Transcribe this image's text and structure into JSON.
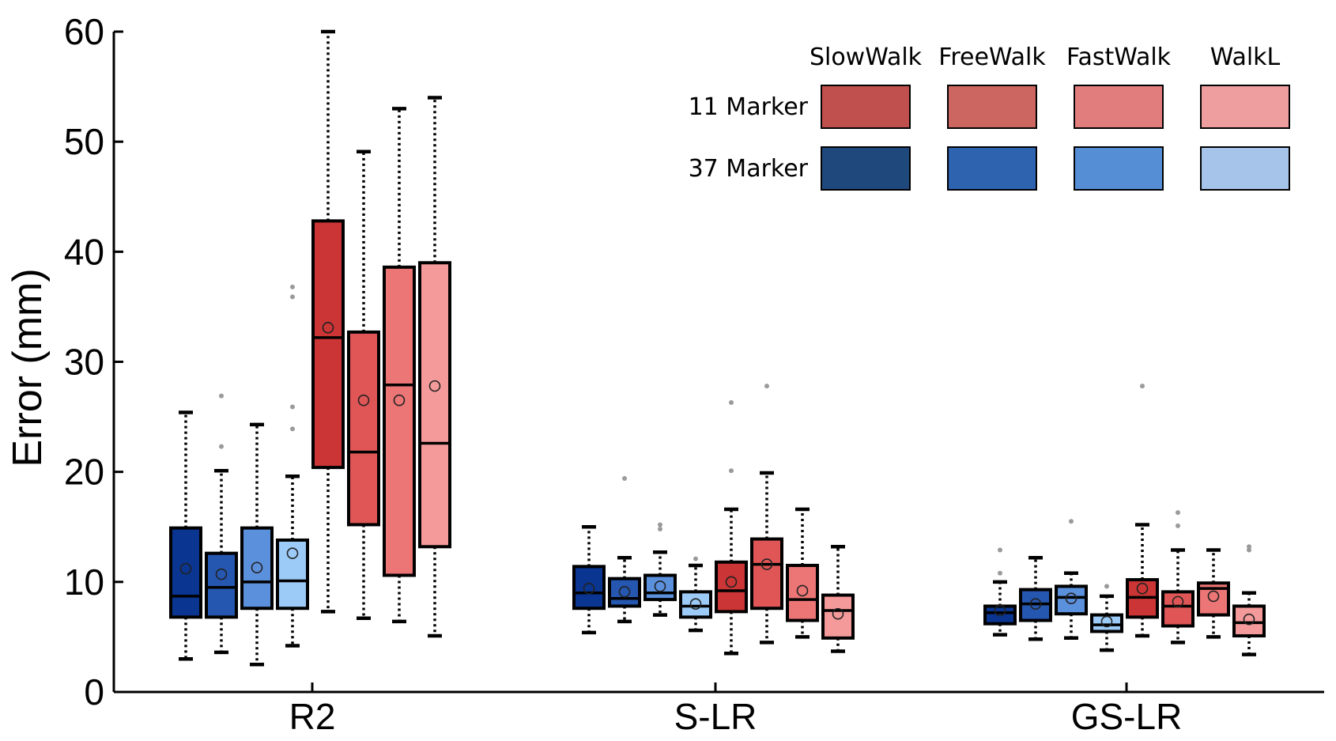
{
  "chart_data": {
    "type": "box",
    "title": "",
    "xlabel": "",
    "ylabel": "Error (mm)",
    "ylim": [
      0,
      60
    ],
    "yticks": [
      0,
      10,
      20,
      30,
      40,
      50,
      60
    ],
    "categories": [
      "R2",
      "S-LR",
      "GS-LR"
    ],
    "legend": {
      "position": "top-right",
      "columns": [
        "SlowWalk",
        "FreeWalk",
        "FastWalk",
        "WalkL"
      ],
      "rows": [
        {
          "label": "11 Marker",
          "colors": [
            "#c0504d",
            "#cc6660",
            "#e27d7d",
            "#ee9e9e"
          ]
        },
        {
          "label": "37 Marker",
          "colors": [
            "#1f497d",
            "#2e63b0",
            "#558ed5",
            "#a6c4ea"
          ]
        }
      ]
    },
    "series": [
      {
        "name": "37 Marker SlowWalk",
        "color": "#0a3590",
        "groups": [
          {
            "category": "R2",
            "min": 3.0,
            "q1": 6.8,
            "median": 8.7,
            "q3": 14.9,
            "max": 25.4,
            "mean": 11.2,
            "outliers": []
          },
          {
            "category": "S-LR",
            "min": 5.4,
            "q1": 7.6,
            "median": 9.0,
            "q3": 11.4,
            "max": 15.0,
            "mean": 9.4,
            "outliers": []
          },
          {
            "category": "GS-LR",
            "min": 5.2,
            "q1": 6.2,
            "median": 7.2,
            "q3": 7.8,
            "max": 10.0,
            "mean": 7.4,
            "outliers": [
              10.8,
              12.9
            ]
          }
        ]
      },
      {
        "name": "37 Marker FreeWalk",
        "color": "#2557b0",
        "groups": [
          {
            "category": "R2",
            "min": 3.6,
            "q1": 6.8,
            "median": 9.5,
            "q3": 12.6,
            "max": 20.1,
            "mean": 10.7,
            "outliers": [
              22.3,
              26.9
            ]
          },
          {
            "category": "S-LR",
            "min": 6.4,
            "q1": 7.8,
            "median": 8.5,
            "q3": 10.3,
            "max": 12.2,
            "mean": 9.1,
            "outliers": [
              19.4
            ]
          },
          {
            "category": "GS-LR",
            "min": 4.8,
            "q1": 6.5,
            "median": 8.0,
            "q3": 9.3,
            "max": 12.2,
            "mean": 8.0,
            "outliers": []
          }
        ]
      },
      {
        "name": "37 Marker FastWalk",
        "color": "#5b90dc",
        "groups": [
          {
            "category": "R2",
            "min": 2.5,
            "q1": 7.6,
            "median": 10.0,
            "q3": 14.9,
            "max": 24.3,
            "mean": 11.3,
            "outliers": []
          },
          {
            "category": "S-LR",
            "min": 7.0,
            "q1": 8.4,
            "median": 9.0,
            "q3": 10.6,
            "max": 12.7,
            "mean": 9.6,
            "outliers": [
              14.8,
              15.2
            ]
          },
          {
            "category": "GS-LR",
            "min": 4.9,
            "q1": 7.1,
            "median": 8.6,
            "q3": 9.6,
            "max": 10.8,
            "mean": 8.5,
            "outliers": [
              15.5
            ]
          }
        ]
      },
      {
        "name": "37 Marker WalkL",
        "color": "#9ccbf7",
        "groups": [
          {
            "category": "R2",
            "min": 4.2,
            "q1": 7.6,
            "median": 10.1,
            "q3": 13.8,
            "max": 19.6,
            "mean": 12.6,
            "outliers": [
              23.9,
              25.9,
              35.9,
              36.8
            ]
          },
          {
            "category": "S-LR",
            "min": 5.6,
            "q1": 6.8,
            "median": 7.8,
            "q3": 9.1,
            "max": 11.5,
            "mean": 8.0,
            "outliers": [
              12.1
            ]
          },
          {
            "category": "GS-LR",
            "min": 3.8,
            "q1": 5.5,
            "median": 6.1,
            "q3": 7.0,
            "max": 8.7,
            "mean": 6.4,
            "outliers": [
              9.6
            ]
          }
        ]
      },
      {
        "name": "11 Marker SlowWalk",
        "color": "#cc3535",
        "groups": [
          {
            "category": "R2",
            "min": 7.3,
            "q1": 20.4,
            "median": 32.2,
            "q3": 42.8,
            "max": 60.0,
            "mean": 33.1,
            "outliers": []
          },
          {
            "category": "S-LR",
            "min": 3.5,
            "q1": 7.3,
            "median": 9.2,
            "q3": 11.8,
            "max": 16.6,
            "mean": 10.0,
            "outliers": [
              20.1,
              26.3
            ]
          },
          {
            "category": "GS-LR",
            "min": 5.1,
            "q1": 6.8,
            "median": 8.6,
            "q3": 10.2,
            "max": 15.2,
            "mean": 9.4,
            "outliers": [
              27.8
            ]
          }
        ]
      },
      {
        "name": "11 Marker FreeWalk",
        "color": "#e05656",
        "groups": [
          {
            "category": "R2",
            "min": 6.7,
            "q1": 15.2,
            "median": 21.8,
            "q3": 32.7,
            "max": 49.1,
            "mean": 26.5,
            "outliers": []
          },
          {
            "category": "S-LR",
            "min": 4.5,
            "q1": 7.6,
            "median": 11.6,
            "q3": 13.9,
            "max": 19.9,
            "mean": 11.6,
            "outliers": [
              27.8
            ]
          },
          {
            "category": "GS-LR",
            "min": 4.5,
            "q1": 6.0,
            "median": 7.8,
            "q3": 9.1,
            "max": 12.9,
            "mean": 8.2,
            "outliers": [
              15.1,
              16.3
            ]
          }
        ]
      },
      {
        "name": "11 Marker FastWalk",
        "color": "#ec7575",
        "groups": [
          {
            "category": "R2",
            "min": 6.4,
            "q1": 10.6,
            "median": 27.9,
            "q3": 38.6,
            "max": 53.0,
            "mean": 26.5,
            "outliers": []
          },
          {
            "category": "S-LR",
            "min": 5.0,
            "q1": 6.5,
            "median": 8.4,
            "q3": 11.5,
            "max": 16.6,
            "mean": 9.2,
            "outliers": []
          },
          {
            "category": "GS-LR",
            "min": 5.0,
            "q1": 7.0,
            "median": 9.4,
            "q3": 9.9,
            "max": 12.9,
            "mean": 8.7,
            "outliers": []
          }
        ]
      },
      {
        "name": "11 Marker WalkL",
        "color": "#f59a9a",
        "groups": [
          {
            "category": "R2",
            "min": 5.1,
            "q1": 13.2,
            "median": 22.6,
            "q3": 39.0,
            "max": 54.0,
            "mean": 27.8,
            "outliers": []
          },
          {
            "category": "S-LR",
            "min": 3.7,
            "q1": 4.9,
            "median": 7.4,
            "q3": 8.8,
            "max": 13.2,
            "mean": 7.1,
            "outliers": []
          },
          {
            "category": "GS-LR",
            "min": 3.4,
            "q1": 5.1,
            "median": 6.3,
            "q3": 7.8,
            "max": 9.0,
            "mean": 6.6,
            "outliers": [
              12.9,
              13.2
            ]
          }
        ]
      }
    ]
  }
}
